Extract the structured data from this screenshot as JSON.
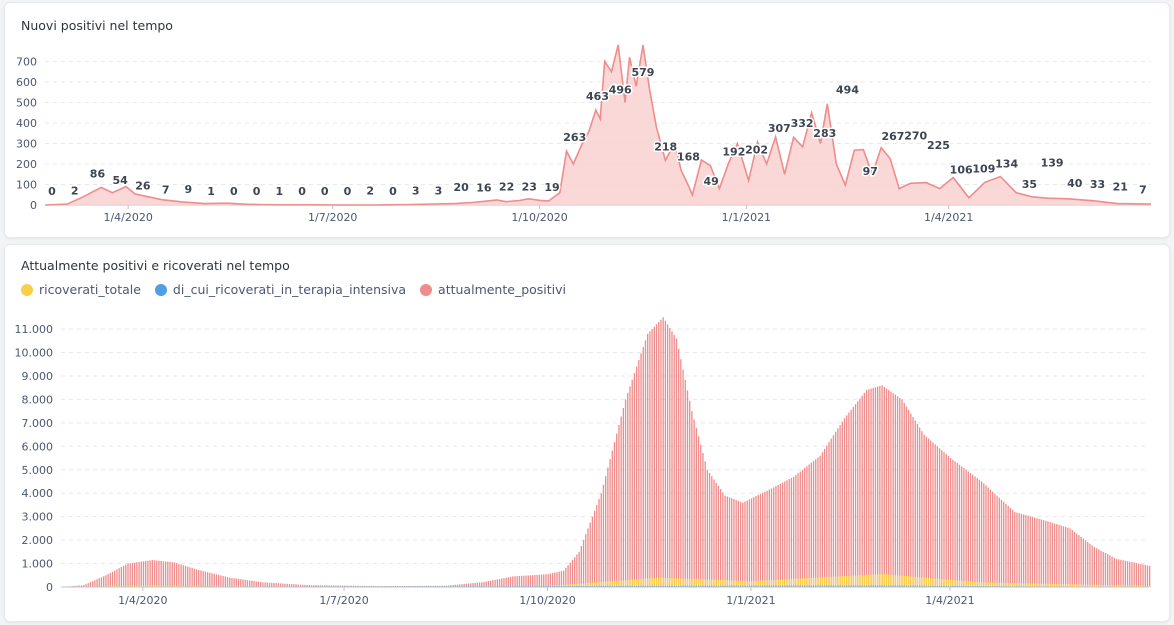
{
  "colors": {
    "positive": "#ef8c8c",
    "positive_fill": "#f9d1d1",
    "ricoverati": "#f9cf48",
    "terapia": "#509ee3",
    "grid": "#e6e8ec",
    "axis_text": "#4c5773",
    "label_text": "#3d4452"
  },
  "chart1": {
    "title": "Nuovi positivi nel tempo",
    "chart_data": {
      "type": "area",
      "title": "Nuovi positivi nel tempo",
      "x_start": "2020-02-24",
      "x_end": "2021-06-30",
      "y_ticks": [
        0,
        100,
        200,
        300,
        400,
        500,
        600,
        700
      ],
      "ylim": [
        0,
        780
      ],
      "x_tick_labels": [
        "1/4/2020",
        "1/7/2020",
        "1/10/2020",
        "1/1/2021",
        "1/4/2021"
      ],
      "x_tick_dates": [
        "2020-04-01",
        "2020-07-01",
        "2020-10-01",
        "2021-01-01",
        "2021-04-01"
      ],
      "grid": "horizontal-dashed",
      "series": [
        {
          "points": [
            [
              "2020-02-24",
              0
            ],
            [
              "2020-03-05",
              5
            ],
            [
              "2020-03-12",
              40
            ],
            [
              "2020-03-20",
              86
            ],
            [
              "2020-03-25",
              60
            ],
            [
              "2020-03-31",
              90
            ],
            [
              "2020-04-04",
              54
            ],
            [
              "2020-04-10",
              40
            ],
            [
              "2020-04-16",
              26
            ],
            [
              "2020-04-25",
              15
            ],
            [
              "2020-05-05",
              7
            ],
            [
              "2020-05-15",
              9
            ],
            [
              "2020-05-25",
              3
            ],
            [
              "2020-06-05",
              1
            ],
            [
              "2020-06-20",
              1
            ],
            [
              "2020-07-05",
              0
            ],
            [
              "2020-07-20",
              0
            ],
            [
              "2020-08-05",
              2
            ],
            [
              "2020-08-15",
              5
            ],
            [
              "2020-08-25",
              8
            ],
            [
              "2020-09-01",
              12
            ],
            [
              "2020-09-08",
              20
            ],
            [
              "2020-09-12",
              25
            ],
            [
              "2020-09-16",
              16
            ],
            [
              "2020-09-22",
              22
            ],
            [
              "2020-09-26",
              30
            ],
            [
              "2020-10-01",
              23
            ],
            [
              "2020-10-05",
              19
            ],
            [
              "2020-10-10",
              60
            ],
            [
              "2020-10-13",
              263
            ],
            [
              "2020-10-16",
              200
            ],
            [
              "2020-10-20",
              300
            ],
            [
              "2020-10-23",
              360
            ],
            [
              "2020-10-26",
              463
            ],
            [
              "2020-10-28",
              420
            ],
            [
              "2020-10-30",
              700
            ],
            [
              "2020-11-02",
              650
            ],
            [
              "2020-11-05",
              780
            ],
            [
              "2020-11-08",
              500
            ],
            [
              "2020-11-10",
              720
            ],
            [
              "2020-11-13",
              579
            ],
            [
              "2020-11-16",
              780
            ],
            [
              "2020-11-19",
              560
            ],
            [
              "2020-11-22",
              380
            ],
            [
              "2020-11-26",
              218
            ],
            [
              "2020-11-30",
              300
            ],
            [
              "2020-12-03",
              168
            ],
            [
              "2020-12-06",
              100
            ],
            [
              "2020-12-08",
              49
            ],
            [
              "2020-12-12",
              220
            ],
            [
              "2020-12-16",
              192
            ],
            [
              "2020-12-20",
              80
            ],
            [
              "2020-12-24",
              202
            ],
            [
              "2020-12-28",
              300
            ],
            [
              "2021-01-02",
              120
            ],
            [
              "2021-01-06",
              307
            ],
            [
              "2021-01-10",
              200
            ],
            [
              "2021-01-14",
              332
            ],
            [
              "2021-01-18",
              150
            ],
            [
              "2021-01-22",
              330
            ],
            [
              "2021-01-26",
              283
            ],
            [
              "2021-01-30",
              450
            ],
            [
              "2021-02-03",
              300
            ],
            [
              "2021-02-06",
              494
            ],
            [
              "2021-02-10",
              200
            ],
            [
              "2021-02-14",
              97
            ],
            [
              "2021-02-18",
              267
            ],
            [
              "2021-02-22",
              270
            ],
            [
              "2021-02-26",
              150
            ],
            [
              "2021-03-02",
              280
            ],
            [
              "2021-03-06",
              225
            ],
            [
              "2021-03-10",
              80
            ],
            [
              "2021-03-15",
              106
            ],
            [
              "2021-03-22",
              109
            ],
            [
              "2021-03-28",
              80
            ],
            [
              "2021-04-03",
              134
            ],
            [
              "2021-04-10",
              35
            ],
            [
              "2021-04-17",
              110
            ],
            [
              "2021-04-24",
              139
            ],
            [
              "2021-05-01",
              60
            ],
            [
              "2021-05-08",
              40
            ],
            [
              "2021-05-15",
              33
            ],
            [
              "2021-05-24",
              30
            ],
            [
              "2021-06-04",
              21
            ],
            [
              "2021-06-15",
              7
            ],
            [
              "2021-06-30",
              5
            ]
          ]
        }
      ],
      "data_labels": [
        {
          "date": "2020-02-24",
          "v": 0,
          "t": "0"
        },
        {
          "date": "2020-03-04",
          "v": 2,
          "t": "2"
        },
        {
          "date": "2020-03-20",
          "v": 86,
          "t": "86"
        },
        {
          "date": "2020-04-04",
          "v": 54,
          "t": "54"
        },
        {
          "date": "2020-04-16",
          "v": 26,
          "t": "26"
        },
        {
          "date": "2020-04-28",
          "v": 7,
          "t": "7"
        },
        {
          "date": "2020-05-09",
          "v": 9,
          "t": "9"
        },
        {
          "date": "2020-05-20",
          "v": 1,
          "t": "1"
        },
        {
          "date": "2020-05-31",
          "v": 0,
          "t": "0"
        },
        {
          "date": "2020-06-11",
          "v": 0,
          "t": "0"
        },
        {
          "date": "2020-06-22",
          "v": 1,
          "t": "1"
        },
        {
          "date": "2020-07-04",
          "v": 0,
          "t": "0"
        },
        {
          "date": "2020-07-15",
          "v": 0,
          "t": "0"
        },
        {
          "date": "2020-07-26",
          "v": 0,
          "t": "0"
        },
        {
          "date": "2020-08-06",
          "v": 2,
          "t": "2"
        },
        {
          "date": "2020-08-18",
          "v": 0,
          "t": "0"
        },
        {
          "date": "2020-08-29",
          "v": 3,
          "t": "3"
        },
        {
          "date": "2020-09-09",
          "v": 3,
          "t": "3"
        },
        {
          "date": "2020-09-19",
          "v": 20,
          "t": "20"
        },
        {
          "date": "2020-10-01",
          "v": 16,
          "t": "16"
        },
        {
          "date": "2020-10-12",
          "v": 22,
          "t": "22"
        },
        {
          "date": "2020-10-23",
          "v": 23,
          "t": "23"
        },
        {
          "date": "2020-11-04",
          "v": 19,
          "t": "19"
        },
        {
          "date": "2020-11-15",
          "v": 263,
          "t": "263"
        },
        {
          "date": "2020-11-26",
          "v": 463,
          "t": "463"
        },
        {
          "date": "2020-12-08",
          "v": 496,
          "t": "496"
        },
        {
          "date": "2020-12-19",
          "v": 579,
          "t": "579"
        },
        {
          "date": "2020-12-30",
          "v": 218,
          "t": "218"
        },
        {
          "date": "2021-01-10",
          "v": 168,
          "t": "168"
        },
        {
          "date": "2021-01-20",
          "v": 49,
          "t": "49"
        },
        {
          "date": "2021-02-01",
          "v": 192,
          "t": "192"
        },
        {
          "date": "2021-02-12",
          "v": 202,
          "t": "202"
        },
        {
          "date": "2021-02-23",
          "v": 307,
          "t": "307"
        },
        {
          "date": "2021-03-06",
          "v": 332,
          "t": "332"
        },
        {
          "date": "2021-03-17",
          "v": 283,
          "t": "283"
        },
        {
          "date": "2021-03-28",
          "v": 494,
          "t": "494"
        },
        {
          "date": "2021-04-08",
          "v": 97,
          "t": "97"
        },
        {
          "date": "2021-04-19",
          "v": 267,
          "t": "267"
        },
        {
          "date": "2021-04-30",
          "v": 270,
          "t": "270"
        },
        {
          "date": "2021-05-11",
          "v": 225,
          "t": "225"
        },
        {
          "date": "2021-05-22",
          "v": 106,
          "t": "106"
        },
        {
          "date": "2021-06-02",
          "v": 109,
          "t": "109"
        },
        {
          "date": "2021-06-13",
          "v": 134,
          "t": "134"
        },
        {
          "date": "2021-06-24",
          "v": 35,
          "t": "35"
        },
        {
          "date": "2021-07-05",
          "v": 139,
          "t": "139"
        },
        {
          "date": "2021-07-16",
          "v": 40,
          "t": "40"
        },
        {
          "date": "2021-07-27",
          "v": 33,
          "t": "33"
        },
        {
          "date": "2021-08-07",
          "v": 21,
          "t": "21"
        },
        {
          "date": "2021-08-18",
          "v": 7,
          "t": "7"
        }
      ]
    }
  },
  "chart2": {
    "title": "Attualmente positivi e ricoverati nel tempo",
    "legend": [
      {
        "name": "ricoverati_totale",
        "color": "#f9cf48"
      },
      {
        "name": "di_cui_ricoverati_in_terapia_intensiva",
        "color": "#509ee3"
      },
      {
        "name": "attualmente_positivi",
        "color": "#ef8c8c"
      }
    ],
    "chart_data": {
      "type": "bar",
      "title": "Attualmente positivi e ricoverati nel tempo",
      "x_start": "2020-02-24",
      "x_end": "2021-06-30",
      "y_ticks": [
        0,
        1000,
        2000,
        3000,
        4000,
        5000,
        6000,
        7000,
        8000,
        9000,
        10000,
        11000
      ],
      "y_tick_labels": [
        "0",
        "1.000",
        "2.000",
        "3.000",
        "4.000",
        "5.000",
        "6.000",
        "7.000",
        "8.000",
        "9.000",
        "10.000",
        "11.000"
      ],
      "ylim": [
        0,
        11600
      ],
      "x_tick_labels": [
        "1/4/2020",
        "1/7/2020",
        "1/10/2020",
        "1/1/2021",
        "1/4/2021"
      ],
      "x_tick_dates": [
        "2020-04-01",
        "2020-07-01",
        "2020-10-01",
        "2021-01-01",
        "2021-04-01"
      ],
      "legend_position": "top-left",
      "series": [
        {
          "name": "attualmente_positivi",
          "points": [
            [
              "2020-02-24",
              0
            ],
            [
              "2020-03-05",
              80
            ],
            [
              "2020-03-15",
              500
            ],
            [
              "2020-03-25",
              1000
            ],
            [
              "2020-04-05",
              1150
            ],
            [
              "2020-04-15",
              1050
            ],
            [
              "2020-04-25",
              750
            ],
            [
              "2020-05-10",
              400
            ],
            [
              "2020-05-25",
              200
            ],
            [
              "2020-06-15",
              80
            ],
            [
              "2020-07-15",
              40
            ],
            [
              "2020-08-15",
              50
            ],
            [
              "2020-09-01",
              200
            ],
            [
              "2020-09-15",
              450
            ],
            [
              "2020-10-01",
              550
            ],
            [
              "2020-10-08",
              700
            ],
            [
              "2020-10-15",
              1500
            ],
            [
              "2020-10-25",
              4000
            ],
            [
              "2020-11-05",
              8000
            ],
            [
              "2020-11-15",
              10800
            ],
            [
              "2020-11-22",
              11500
            ],
            [
              "2020-11-28",
              10600
            ],
            [
              "2020-12-05",
              7500
            ],
            [
              "2020-12-12",
              5000
            ],
            [
              "2020-12-20",
              3900
            ],
            [
              "2020-12-28",
              3600
            ],
            [
              "2021-01-10",
              4200
            ],
            [
              "2021-01-20",
              4700
            ],
            [
              "2021-02-01",
              5600
            ],
            [
              "2021-02-12",
              7200
            ],
            [
              "2021-02-22",
              8400
            ],
            [
              "2021-03-01",
              8600
            ],
            [
              "2021-03-10",
              8000
            ],
            [
              "2021-03-20",
              6500
            ],
            [
              "2021-04-01",
              5500
            ],
            [
              "2021-04-15",
              4500
            ],
            [
              "2021-04-30",
              3200
            ],
            [
              "2021-05-15",
              2800
            ],
            [
              "2021-05-25",
              2500
            ],
            [
              "2021-06-05",
              1700
            ],
            [
              "2021-06-15",
              1200
            ],
            [
              "2021-06-30",
              900
            ],
            [
              "2021-07-10",
              800
            ]
          ]
        },
        {
          "name": "ricoverati_totale",
          "points": [
            [
              "2020-02-24",
              0
            ],
            [
              "2020-04-01",
              60
            ],
            [
              "2020-05-15",
              10
            ],
            [
              "2020-10-01",
              40
            ],
            [
              "2020-11-20",
              400
            ],
            [
              "2021-01-01",
              250
            ],
            [
              "2021-03-01",
              550
            ],
            [
              "2021-04-15",
              200
            ],
            [
              "2021-07-10",
              20
            ]
          ]
        },
        {
          "name": "di_cui_ricoverati_in_terapia_intensiva",
          "points": [
            [
              "2020-02-24",
              0
            ],
            [
              "2020-04-01",
              15
            ],
            [
              "2020-11-20",
              50
            ],
            [
              "2021-03-01",
              60
            ],
            [
              "2021-07-10",
              2
            ]
          ]
        }
      ]
    }
  }
}
